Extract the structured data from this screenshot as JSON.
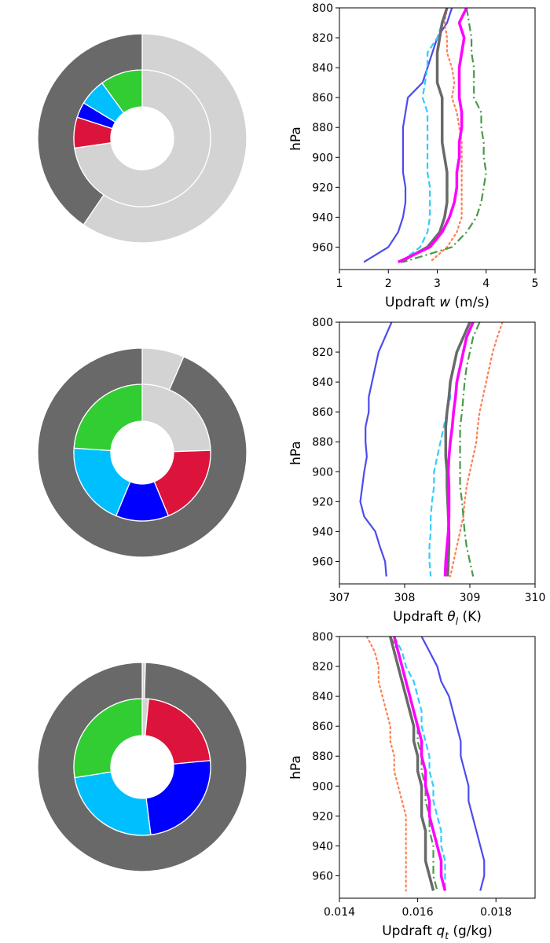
{
  "chart_data": [
    {
      "type": "pie",
      "subtype": "nested-donut",
      "outer": {
        "values": [
          0.595,
          0.405
        ],
        "colors": [
          "#d3d3d3",
          "#696969"
        ]
      },
      "inner": {
        "values": [
          0.8,
          0.08,
          0.04,
          0.07,
          0.11
        ],
        "colors": [
          "#d3d3d3",
          "#dc143c",
          "#0000ff",
          "#00bfff",
          "#32cd32"
        ]
      }
    },
    {
      "type": "line",
      "xlabel_main": "Updraft ",
      "xlabel_sym": "w",
      "xlabel_sub": "",
      "xlabel_unit": " (m/s)",
      "ylabel": "hPa",
      "xlim": [
        1,
        5
      ],
      "ylim": [
        975,
        800
      ],
      "xticks": [
        1,
        2,
        3,
        4,
        5
      ],
      "xtick_labels": [
        "1",
        "2",
        "3",
        "4",
        "5"
      ],
      "yticks": [
        800,
        820,
        840,
        860,
        880,
        900,
        920,
        940,
        960
      ],
      "ytick_labels": [
        "800",
        "820",
        "840",
        "860",
        "880",
        "900",
        "920",
        "940",
        "960"
      ],
      "y": [
        800,
        810,
        820,
        830,
        840,
        850,
        860,
        870,
        880,
        890,
        900,
        910,
        920,
        930,
        940,
        950,
        960,
        970
      ],
      "series": [
        {
          "color": "#4b4bf0",
          "dash": "solid",
          "width": 2.2,
          "x": [
            3.3,
            3.2,
            3.0,
            2.9,
            2.8,
            2.7,
            2.4,
            2.35,
            2.3,
            2.3,
            2.3,
            2.3,
            2.35,
            2.35,
            2.3,
            2.2,
            2.0,
            1.5
          ]
        },
        {
          "color": "#33ccff",
          "dash": "8,4",
          "width": 2.2,
          "x": [
            3.2,
            3.1,
            3.0,
            2.8,
            2.8,
            2.75,
            2.7,
            2.8,
            2.8,
            2.8,
            2.8,
            2.8,
            2.85,
            2.85,
            2.85,
            2.8,
            2.65,
            2.25
          ]
        },
        {
          "color": "#ff7f50",
          "dash": "2,4",
          "width": 2.2,
          "x": [
            3.2,
            3.15,
            3.2,
            3.2,
            3.3,
            3.35,
            3.3,
            3.4,
            3.45,
            3.5,
            3.5,
            3.5,
            3.5,
            3.5,
            3.5,
            3.4,
            3.2,
            2.85
          ]
        },
        {
          "color": "#4a994a",
          "dash": "10,4,2,4",
          "width": 2.2,
          "x": [
            3.6,
            3.65,
            3.7,
            3.7,
            3.75,
            3.75,
            3.75,
            3.9,
            3.9,
            3.95,
            3.95,
            4.0,
            3.95,
            3.9,
            3.8,
            3.6,
            3.3,
            2.3
          ]
        },
        {
          "color": "#696969",
          "dash": "solid",
          "width": 3.5,
          "x": [
            3.2,
            3.1,
            3.05,
            3.0,
            3.0,
            3.0,
            3.1,
            3.1,
            3.1,
            3.1,
            3.15,
            3.2,
            3.2,
            3.2,
            3.15,
            3.05,
            2.8,
            2.25
          ]
        },
        {
          "color": "#ff00ff",
          "dash": "solid",
          "width": 3.5,
          "x": [
            3.6,
            3.45,
            3.55,
            3.5,
            3.45,
            3.45,
            3.45,
            3.5,
            3.5,
            3.45,
            3.45,
            3.4,
            3.4,
            3.35,
            3.25,
            3.1,
            2.85,
            2.2
          ]
        }
      ]
    },
    {
      "type": "pie",
      "subtype": "nested-donut",
      "outer": {
        "values": [
          0.065,
          0.935
        ],
        "colors": [
          "#d3d3d3",
          "#696969"
        ]
      },
      "inner": {
        "values": [
          0.235,
          0.185,
          0.12,
          0.19,
          0.23
        ],
        "colors": [
          "#d3d3d3",
          "#dc143c",
          "#0000ff",
          "#00bfff",
          "#32cd32"
        ]
      }
    },
    {
      "type": "line",
      "xlabel_main": "Updraft ",
      "xlabel_sym": "θ",
      "xlabel_sub": "l",
      "xlabel_unit": " (K)",
      "ylabel": "hPa",
      "xlim": [
        307,
        310
      ],
      "ylim": [
        975,
        800
      ],
      "xticks": [
        307,
        308,
        309,
        310
      ],
      "xtick_labels": [
        "307",
        "308",
        "309",
        "310"
      ],
      "yticks": [
        800,
        820,
        840,
        860,
        880,
        900,
        920,
        940,
        960
      ],
      "ytick_labels": [
        "800",
        "820",
        "840",
        "860",
        "880",
        "900",
        "920",
        "940",
        "960"
      ],
      "y": [
        800,
        810,
        820,
        830,
        840,
        850,
        860,
        870,
        880,
        890,
        900,
        910,
        920,
        930,
        940,
        950,
        960,
        970
      ],
      "series": [
        {
          "color": "#4b4bf0",
          "dash": "solid",
          "width": 2.2,
          "x": [
            307.8,
            307.7,
            307.6,
            307.55,
            307.5,
            307.45,
            307.45,
            307.4,
            307.4,
            307.42,
            307.38,
            307.35,
            307.32,
            307.38,
            307.55,
            307.62,
            307.7,
            307.72
          ]
        },
        {
          "color": "#33ccff",
          "dash": "8,4",
          "width": 2.2,
          "x": [
            309.0,
            308.9,
            308.8,
            308.75,
            308.7,
            308.7,
            308.65,
            308.6,
            308.55,
            308.5,
            308.45,
            308.45,
            308.42,
            308.4,
            308.4,
            308.38,
            308.38,
            308.4
          ]
        },
        {
          "color": "#ff7f50",
          "dash": "2,4",
          "width": 2.2,
          "x": [
            309.5,
            309.42,
            309.35,
            309.3,
            309.25,
            309.2,
            309.15,
            309.12,
            309.1,
            309.05,
            309.0,
            308.95,
            308.92,
            308.9,
            308.85,
            308.8,
            308.75,
            308.7
          ]
        },
        {
          "color": "#4a994a",
          "dash": "10,4,2,4",
          "width": 2.2,
          "x": [
            309.15,
            309.05,
            309.0,
            308.95,
            308.92,
            308.9,
            308.88,
            308.85,
            308.85,
            308.85,
            308.85,
            308.85,
            308.88,
            308.9,
            308.92,
            308.95,
            309.0,
            309.05
          ]
        },
        {
          "color": "#696969",
          "dash": "solid",
          "width": 3.5,
          "x": [
            309.0,
            308.9,
            308.8,
            308.75,
            308.7,
            308.68,
            308.65,
            308.63,
            308.63,
            308.63,
            308.65,
            308.65,
            308.66,
            308.67,
            308.68,
            308.68,
            308.67,
            308.66
          ]
        },
        {
          "color": "#ff00ff",
          "dash": "solid",
          "width": 3.5,
          "x": [
            309.05,
            308.95,
            308.9,
            308.85,
            308.8,
            308.78,
            308.75,
            308.73,
            308.7,
            308.68,
            308.67,
            308.68,
            308.68,
            308.68,
            308.67,
            308.65,
            308.63,
            308.62
          ]
        }
      ]
    },
    {
      "type": "pie",
      "subtype": "nested-donut",
      "outer": {
        "values": [
          0.005,
          0.995
        ],
        "colors": [
          "#d3d3d3",
          "#696969"
        ]
      },
      "inner": {
        "values": [
          0.015,
          0.22,
          0.245,
          0.245,
          0.275
        ],
        "colors": [
          "#d3d3d3",
          "#dc143c",
          "#0000ff",
          "#00bfff",
          "#32cd32"
        ]
      }
    },
    {
      "type": "line",
      "xlabel_main": "Updraft ",
      "xlabel_sym": "q",
      "xlabel_sub": "t",
      "xlabel_unit": " (g/kg)",
      "ylabel": "hPa",
      "xlim": [
        0.014,
        0.019
      ],
      "ylim": [
        975,
        800
      ],
      "xticks": [
        0.014,
        0.016,
        0.018
      ],
      "xtick_labels": [
        "0.014",
        "0.016",
        "0.018"
      ],
      "yticks": [
        800,
        820,
        840,
        860,
        880,
        900,
        920,
        940,
        960
      ],
      "ytick_labels": [
        "800",
        "820",
        "840",
        "860",
        "880",
        "900",
        "920",
        "940",
        "960"
      ],
      "y": [
        800,
        810,
        820,
        830,
        840,
        850,
        860,
        870,
        880,
        890,
        900,
        910,
        920,
        930,
        940,
        950,
        960,
        970
      ],
      "series": [
        {
          "color": "#4b4bf0",
          "dash": "solid",
          "width": 2.2,
          "x": [
            0.0161,
            0.0163,
            0.0165,
            0.0166,
            0.0168,
            0.0169,
            0.017,
            0.0171,
            0.0171,
            0.0172,
            0.0173,
            0.0173,
            0.0174,
            0.0175,
            0.0176,
            0.0177,
            0.0177,
            0.0176
          ]
        },
        {
          "color": "#33ccff",
          "dash": "8,4",
          "width": 2.2,
          "x": [
            0.0154,
            0.0156,
            0.0157,
            0.0159,
            0.016,
            0.0161,
            0.0161,
            0.0162,
            0.0163,
            0.0163,
            0.0164,
            0.0164,
            0.0165,
            0.0166,
            0.0166,
            0.0167,
            0.0167,
            0.0167
          ]
        },
        {
          "color": "#ff7f50",
          "dash": "2,4",
          "width": 2.2,
          "x": [
            0.0147,
            0.0149,
            0.015,
            0.015,
            0.0151,
            0.0152,
            0.0153,
            0.0153,
            0.0154,
            0.0154,
            0.0155,
            0.0156,
            0.0157,
            0.0157,
            0.0157,
            0.0157,
            0.0157,
            0.0157
          ]
        },
        {
          "color": "#4a994a",
          "dash": "10,4,2,4",
          "width": 2.2,
          "x": [
            0.0153,
            0.0155,
            0.0156,
            0.0157,
            0.0158,
            0.0159,
            0.016,
            0.016,
            0.0161,
            0.0161,
            0.0162,
            0.0162,
            0.0163,
            0.0163,
            0.0164,
            0.0164,
            0.0164,
            0.0165
          ]
        },
        {
          "color": "#696969",
          "dash": "solid",
          "width": 3.5,
          "x": [
            0.0153,
            0.0154,
            0.0155,
            0.0156,
            0.0157,
            0.0158,
            0.0159,
            0.0159,
            0.016,
            0.016,
            0.0161,
            0.0161,
            0.0161,
            0.0162,
            0.0162,
            0.0162,
            0.0163,
            0.0164
          ]
        },
        {
          "color": "#ff00ff",
          "dash": "solid",
          "width": 3.5,
          "x": [
            0.0154,
            0.0155,
            0.0156,
            0.0157,
            0.0158,
            0.0159,
            0.016,
            0.0161,
            0.0161,
            0.0162,
            0.0162,
            0.0163,
            0.0163,
            0.0164,
            0.0165,
            0.0166,
            0.0166,
            0.0167
          ]
        }
      ]
    }
  ]
}
